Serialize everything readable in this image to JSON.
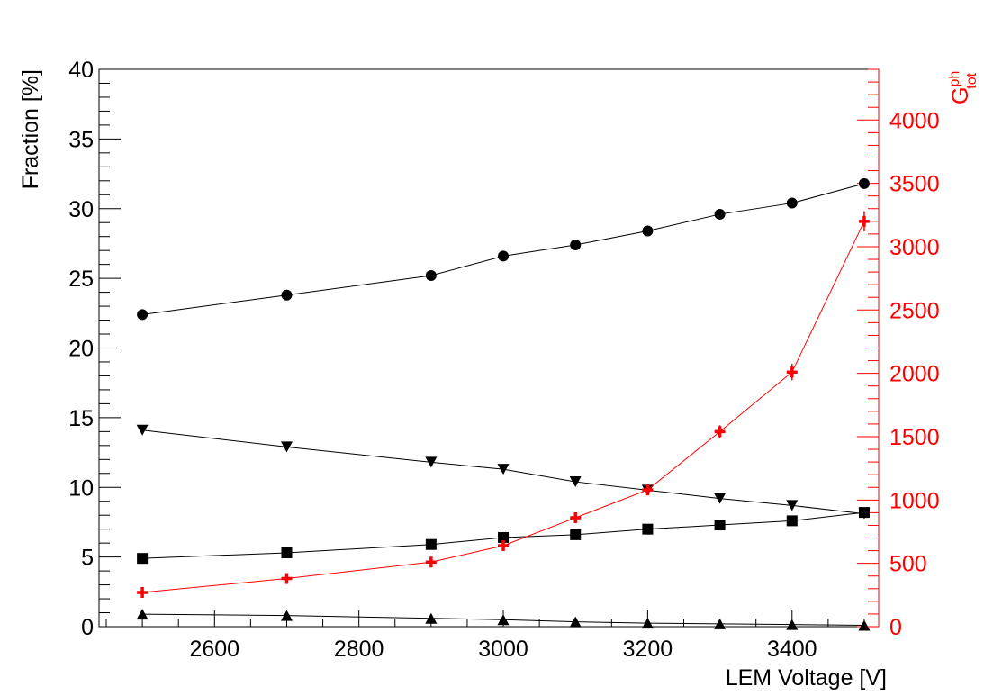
{
  "chart_data": {
    "type": "line",
    "title": "",
    "xlabel": "LEM Voltage [V]",
    "ylabel": "Fraction [%]",
    "y2label": "G",
    "y2label_sup": "ph",
    "y2label_sub": "tot",
    "xlim": [
      2440,
      3520
    ],
    "ylim": [
      0,
      40
    ],
    "y2lim": [
      0,
      4400
    ],
    "xticks": [
      2600,
      2800,
      3000,
      3200,
      3400
    ],
    "yticks": [
      0,
      5,
      10,
      15,
      20,
      25,
      30,
      35,
      40
    ],
    "y2ticks": [
      0,
      500,
      1000,
      1500,
      2000,
      2500,
      3000,
      3500,
      4000
    ],
    "grid": false,
    "colors": {
      "axis": "#000000",
      "right_axis": "#ff0000"
    },
    "series": [
      {
        "marker": "circle",
        "axis": "left",
        "color": "#000000",
        "x": [
          2500,
          2700,
          2900,
          3000,
          3100,
          3200,
          3300,
          3400,
          3500
        ],
        "values": [
          22.4,
          23.8,
          25.2,
          26.6,
          27.4,
          28.4,
          29.6,
          30.4,
          31.8
        ]
      },
      {
        "marker": "triangle-down",
        "axis": "left",
        "color": "#000000",
        "x": [
          2500,
          2700,
          2900,
          3000,
          3100,
          3200,
          3300,
          3400,
          3500
        ],
        "values": [
          14.1,
          12.9,
          11.8,
          11.3,
          10.4,
          9.8,
          9.2,
          8.7,
          8.1
        ]
      },
      {
        "marker": "square",
        "axis": "left",
        "color": "#000000",
        "x": [
          2500,
          2700,
          2900,
          3000,
          3100,
          3200,
          3300,
          3400,
          3500
        ],
        "values": [
          4.9,
          5.3,
          5.9,
          6.4,
          6.6,
          7.0,
          7.3,
          7.6,
          8.2
        ]
      },
      {
        "marker": "triangle-up",
        "axis": "left",
        "color": "#000000",
        "x": [
          2500,
          2700,
          2900,
          3000,
          3100,
          3200,
          3300,
          3400,
          3500
        ],
        "values": [
          0.9,
          0.8,
          0.6,
          0.5,
          0.35,
          0.25,
          0.2,
          0.15,
          0.1
        ]
      },
      {
        "marker": "cross",
        "axis": "right",
        "color": "#ff0000",
        "x": [
          2500,
          2700,
          2900,
          3000,
          3100,
          3200,
          3300,
          3400,
          3500
        ],
        "values": [
          270,
          380,
          510,
          640,
          860,
          1080,
          1540,
          2010,
          3200
        ],
        "errors": [
          15,
          15,
          20,
          25,
          30,
          40,
          50,
          65,
          80
        ]
      }
    ]
  }
}
